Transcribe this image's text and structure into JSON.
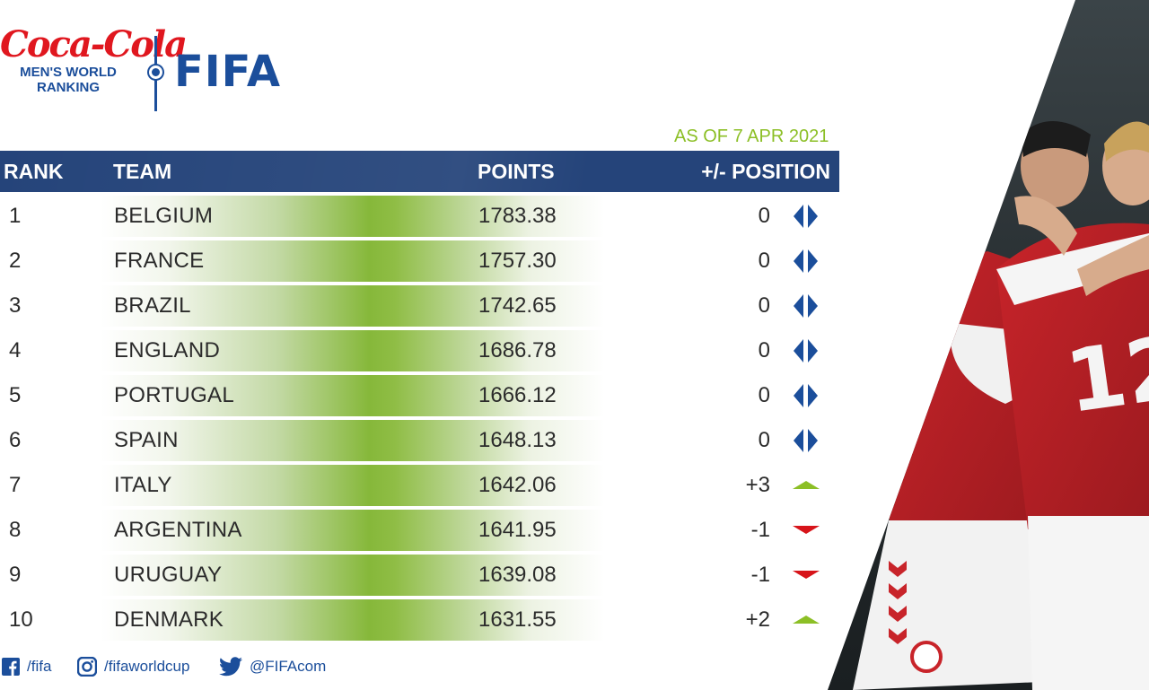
{
  "header": {
    "brand": "Coca-Cola",
    "ranking_line1": "MEN'S WORLD",
    "ranking_line2": "RANKING",
    "fifa": "FIFA",
    "as_of": "AS OF 7 APR 2021"
  },
  "table": {
    "columns": {
      "rank": "RANK",
      "team": "TEAM",
      "points": "POINTS",
      "position": "+/- POSITION"
    },
    "rows": [
      {
        "rank": "1",
        "team": "BELGIUM",
        "points": "1783.38",
        "change": "0",
        "trend": "same"
      },
      {
        "rank": "2",
        "team": "FRANCE",
        "points": "1757.30",
        "change": "0",
        "trend": "same"
      },
      {
        "rank": "3",
        "team": "BRAZIL",
        "points": "1742.65",
        "change": "0",
        "trend": "same"
      },
      {
        "rank": "4",
        "team": "ENGLAND",
        "points": "1686.78",
        "change": "0",
        "trend": "same"
      },
      {
        "rank": "5",
        "team": "PORTUGAL",
        "points": "1666.12",
        "change": "0",
        "trend": "same"
      },
      {
        "rank": "6",
        "team": "SPAIN",
        "points": "1648.13",
        "change": "0",
        "trend": "same"
      },
      {
        "rank": "7",
        "team": "ITALY",
        "points": "1642.06",
        "change": "+3",
        "trend": "up"
      },
      {
        "rank": "8",
        "team": "ARGENTINA",
        "points": "1641.95",
        "change": "-1",
        "trend": "down"
      },
      {
        "rank": "9",
        "team": "URUGUAY",
        "points": "1639.08",
        "change": "-1",
        "trend": "down"
      },
      {
        "rank": "10",
        "team": "DENMARK",
        "points": "1631.55",
        "change": "+2",
        "trend": "up"
      }
    ]
  },
  "footer": {
    "facebook": "/fifa",
    "instagram": "/fifaworldcup",
    "twitter": "@FIFAcom"
  },
  "icons": {
    "same": "no-change-diamond-icon",
    "up": "arrow-up-triangle-icon",
    "down": "arrow-down-triangle-icon"
  },
  "colors": {
    "brand_blue": "#1b4e9b",
    "header_bar": "#25447a",
    "accent_green": "#8cbf26",
    "up": "#8cbf26",
    "down": "#d7141a",
    "coke_red": "#e0171f"
  }
}
